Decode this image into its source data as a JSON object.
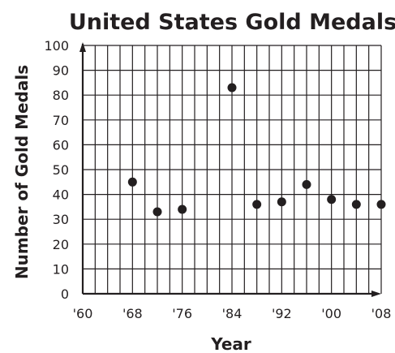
{
  "chart_data": {
    "type": "scatter",
    "title": "United States Gold Medals",
    "xlabel": "Year",
    "ylabel": "Number of Gold Medals",
    "xlim": [
      1960,
      2008
    ],
    "ylim": [
      0,
      100
    ],
    "grid": true,
    "x_tick_values": [
      1960,
      1968,
      1976,
      1984,
      1992,
      2000,
      2008
    ],
    "x_tick_labels": [
      "'60",
      "'68",
      "'76",
      "'84",
      "'92",
      "'00",
      "'08"
    ],
    "y_ticks": [
      0,
      10,
      20,
      30,
      40,
      50,
      60,
      70,
      80,
      90,
      100
    ],
    "series": [
      {
        "x": [
          1968,
          1972,
          1976,
          1984,
          1988,
          1992,
          1996,
          2000,
          2004,
          2008
        ],
        "y": [
          45,
          33,
          34,
          83,
          36,
          37,
          44,
          38,
          36,
          36
        ]
      }
    ]
  }
}
